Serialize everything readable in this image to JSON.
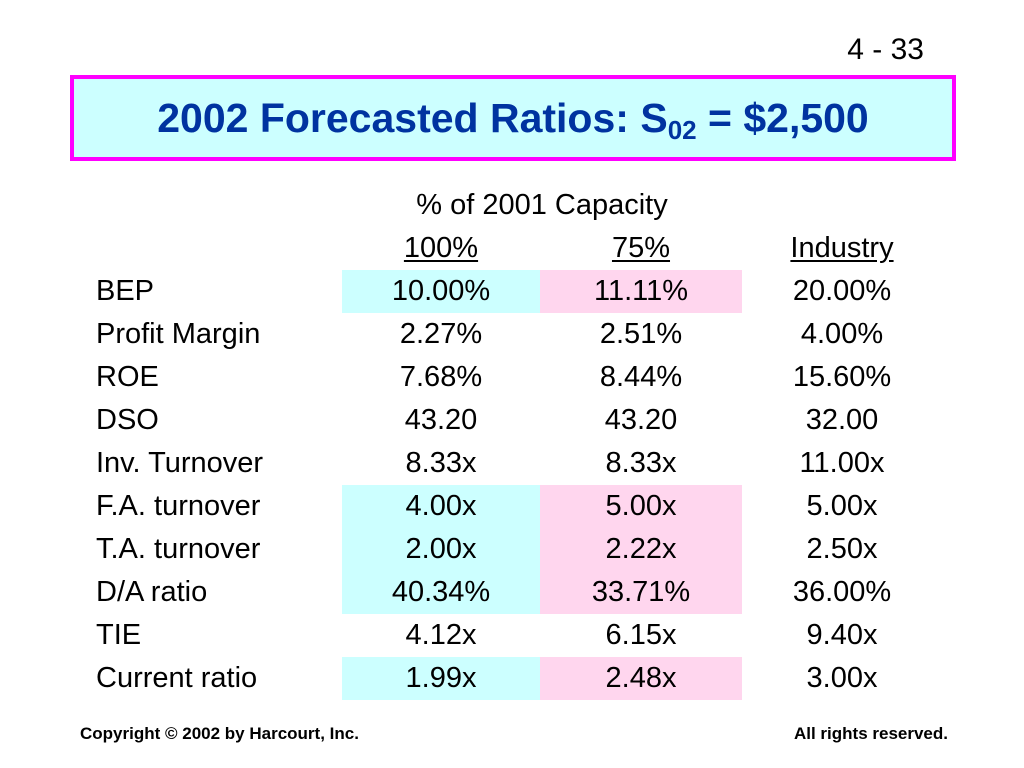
{
  "slide_number": "4 - 33",
  "title": {
    "main": "2002 Forecasted Ratios:  S",
    "subscript": "02",
    "suffix": " = $2,500"
  },
  "table": {
    "group_header": "% of 2001 Capacity",
    "columns": [
      "100%",
      "75%",
      "Industry"
    ],
    "rows": [
      {
        "label": "BEP",
        "values": [
          "10.00%",
          "11.11%",
          "20.00%"
        ],
        "highlight": true
      },
      {
        "label": "Profit Margin",
        "values": [
          "2.27%",
          "2.51%",
          "4.00%"
        ],
        "highlight": false
      },
      {
        "label": "ROE",
        "values": [
          "7.68%",
          "8.44%",
          "15.60%"
        ],
        "highlight": false
      },
      {
        "label": "DSO",
        "values": [
          "43.20",
          "43.20",
          "32.00"
        ],
        "highlight": false
      },
      {
        "label": "Inv. Turnover",
        "values": [
          "8.33x",
          "8.33x",
          "11.00x"
        ],
        "highlight": false
      },
      {
        "label": "F.A. turnover",
        "values": [
          "4.00x",
          "5.00x",
          "5.00x"
        ],
        "highlight": true
      },
      {
        "label": "T.A. turnover",
        "values": [
          "2.00x",
          "2.22x",
          "2.50x"
        ],
        "highlight": true
      },
      {
        "label": "D/A ratio",
        "values": [
          "40.34%",
          "33.71%",
          "36.00%"
        ],
        "highlight": true
      },
      {
        "label": "TIE",
        "values": [
          "4.12x",
          "6.15x",
          "9.40x"
        ],
        "highlight": false
      },
      {
        "label": "Current ratio",
        "values": [
          "1.99x",
          "2.48x",
          "3.00x"
        ],
        "highlight": true
      }
    ]
  },
  "footer": {
    "left": "Copyright © 2002 by Harcourt, Inc.",
    "right": "All rights reserved."
  },
  "colors": {
    "title_text": "#0033a0",
    "title_background": "#ccffff",
    "title_border": "#ff00ff",
    "highlight_100": "#ccffff",
    "highlight_75": "#ffd6ee"
  }
}
